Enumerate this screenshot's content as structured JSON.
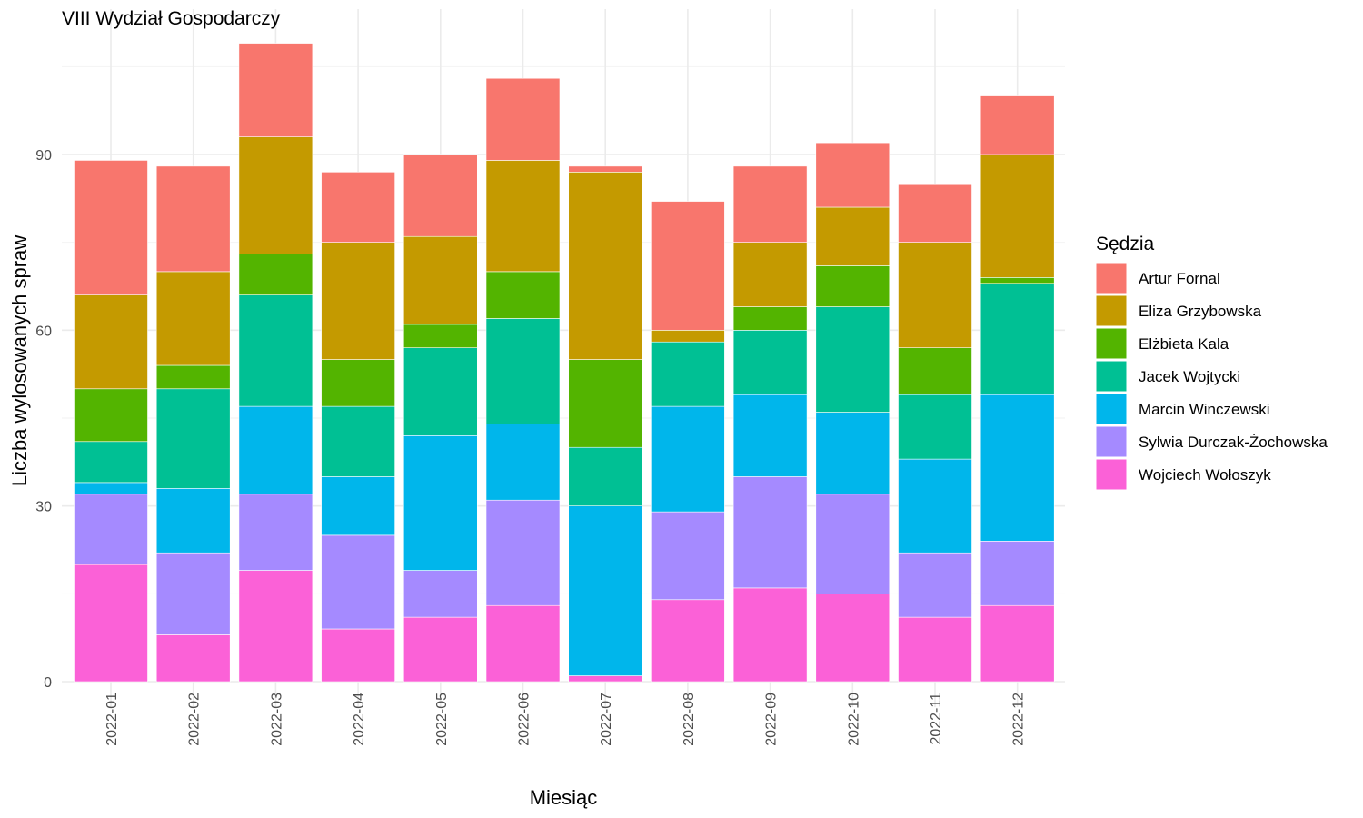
{
  "chart_data": {
    "type": "bar",
    "stacked": true,
    "title": "VIII Wydział Gospodarczy",
    "xlabel": "Miesiąc",
    "ylabel": "Liczba wylosowanych spraw",
    "ylim": [
      0,
      115
    ],
    "yticks": [
      0,
      30,
      60,
      90
    ],
    "grid": true,
    "legend_title": "Sędzia",
    "legend_position": "right",
    "categories": [
      "2022-01",
      "2022-02",
      "2022-03",
      "2022-04",
      "2022-05",
      "2022-06",
      "2022-07",
      "2022-08",
      "2022-09",
      "2022-10",
      "2022-11",
      "2022-12"
    ],
    "series": [
      {
        "name": "Artur Fornal",
        "color": "#F8766D",
        "values": [
          23,
          18,
          16,
          12,
          14,
          14,
          1,
          22,
          13,
          11,
          10,
          10
        ]
      },
      {
        "name": "Eliza Grzybowska",
        "color": "#C49A00",
        "values": [
          16,
          16,
          20,
          20,
          15,
          19,
          32,
          2,
          11,
          10,
          18,
          21
        ]
      },
      {
        "name": "Elżbieta Kala",
        "color": "#53B400",
        "values": [
          9,
          4,
          7,
          8,
          4,
          8,
          15,
          0,
          4,
          7,
          8,
          1
        ]
      },
      {
        "name": "Jacek Wojtycki",
        "color": "#00C094",
        "values": [
          7,
          17,
          19,
          12,
          15,
          18,
          10,
          11,
          11,
          18,
          11,
          19
        ]
      },
      {
        "name": "Marcin Winczewski",
        "color": "#00B6EB",
        "values": [
          2,
          11,
          15,
          10,
          23,
          13,
          29,
          18,
          14,
          14,
          16,
          25
        ]
      },
      {
        "name": "Sylwia Durczak-Żochowska",
        "color": "#A58AFF",
        "values": [
          12,
          14,
          13,
          16,
          8,
          18,
          0,
          15,
          19,
          17,
          11,
          11
        ]
      },
      {
        "name": "Wojciech Wołoszyk",
        "color": "#FB61D7",
        "values": [
          20,
          8,
          19,
          9,
          11,
          13,
          1,
          14,
          16,
          15,
          11,
          13
        ]
      }
    ]
  }
}
